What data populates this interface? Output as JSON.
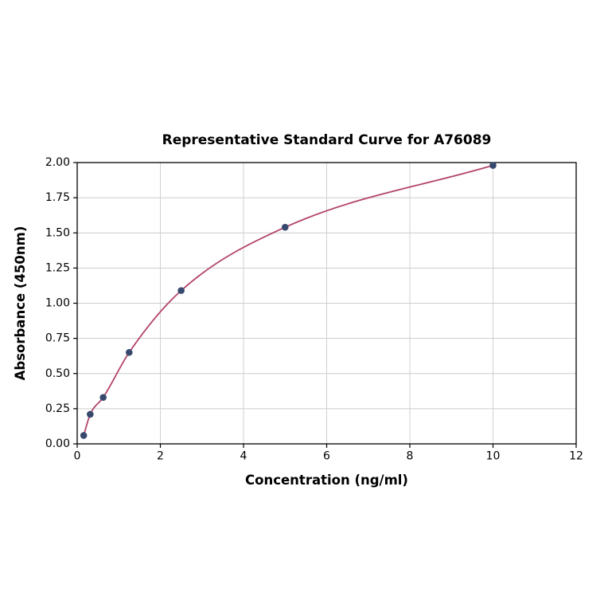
{
  "chart_data": {
    "type": "scatter",
    "title": "Representative Standard Curve for A76089",
    "xlabel": "Concentration (ng/ml)",
    "ylabel": "Absorbance (450nm)",
    "xlim": [
      0,
      12
    ],
    "ylim": [
      0,
      2.0
    ],
    "x_ticks": [
      0,
      2,
      4,
      6,
      8,
      10,
      12
    ],
    "x_tick_labels": [
      "0",
      "2",
      "4",
      "6",
      "8",
      "10",
      "12"
    ],
    "y_ticks": [
      0,
      0.25,
      0.5,
      0.75,
      1.0,
      1.25,
      1.5,
      1.75,
      2.0
    ],
    "y_tick_labels": [
      "0.00",
      "0.25",
      "0.50",
      "0.75",
      "1.00",
      "1.25",
      "1.50",
      "1.75",
      "2.00"
    ],
    "grid": true,
    "legend": "none",
    "series": [
      {
        "name": "standards",
        "x": [
          0.156,
          0.3125,
          0.625,
          1.25,
          2.5,
          5,
          10
        ],
        "y": [
          0.06,
          0.21,
          0.33,
          0.65,
          1.09,
          1.54,
          1.98
        ]
      }
    ],
    "colors": {
      "marker": "#38496e",
      "curve": "#b3446c",
      "grid": "#cccccc",
      "axis": "#000000",
      "background": "#ffffff"
    }
  }
}
